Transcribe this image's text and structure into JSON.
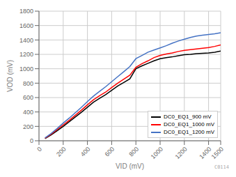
{
  "chart_data": {
    "type": "line",
    "xlabel": "VID (mV)",
    "ylabel": "VOD (mV)",
    "x": [
      50,
      100,
      150,
      200,
      250,
      300,
      350,
      400,
      450,
      500,
      550,
      600,
      650,
      700,
      750,
      800,
      850,
      900,
      950,
      1000,
      1050,
      1100,
      1150,
      1200,
      1250,
      1300,
      1350,
      1400,
      1450,
      1500
    ],
    "series": [
      {
        "name": "DC0_EQ1_900 mV",
        "color": "#000000",
        "values": [
          30,
          80,
          140,
          200,
          265,
          330,
          395,
          465,
          535,
          590,
          640,
          700,
          760,
          810,
          860,
          1000,
          1040,
          1075,
          1110,
          1140,
          1155,
          1165,
          1180,
          1195,
          1200,
          1210,
          1215,
          1220,
          1230,
          1245
        ]
      },
      {
        "name": "DC0_EQ1_1000 mV",
        "color": "#ff0000",
        "values": [
          35,
          90,
          155,
          220,
          285,
          355,
          425,
          500,
          570,
          625,
          675,
          740,
          800,
          855,
          910,
          1020,
          1070,
          1110,
          1155,
          1185,
          1205,
          1220,
          1240,
          1255,
          1265,
          1275,
          1285,
          1295,
          1310,
          1330
        ]
      },
      {
        "name": "DC0_EQ1_1200 mV",
        "color": "#4472c4",
        "values": [
          40,
          100,
          170,
          245,
          315,
          390,
          465,
          545,
          620,
          685,
          750,
          820,
          890,
          960,
          1030,
          1140,
          1185,
          1230,
          1260,
          1290,
          1320,
          1355,
          1385,
          1410,
          1435,
          1455,
          1465,
          1475,
          1485,
          1500
        ]
      }
    ],
    "xlim": [
      0,
      1500
    ],
    "ylim": [
      0,
      1800
    ],
    "xticks": [
      0,
      200,
      400,
      600,
      800,
      1000,
      1200,
      1400,
      1500
    ],
    "yticks": [
      0,
      200,
      400,
      600,
      800,
      1000,
      1200,
      1400,
      1600,
      1800
    ],
    "grid": true,
    "legend": "lower right",
    "annotations": [
      "C0114"
    ]
  }
}
